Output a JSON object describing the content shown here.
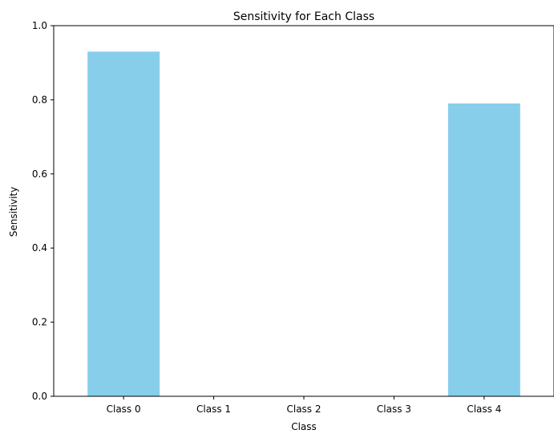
{
  "chart_data": {
    "type": "bar",
    "title": "Sensitivity for Each Class",
    "xlabel": "Class",
    "ylabel": "Sensitivity",
    "categories": [
      "Class 0",
      "Class 1",
      "Class 2",
      "Class 3",
      "Class 4"
    ],
    "values": [
      0.93,
      0.0,
      0.0,
      0.0,
      0.79
    ],
    "ylim": [
      0,
      1.0
    ],
    "yticks": [
      "0.0",
      "0.2",
      "0.4",
      "0.6",
      "0.8",
      "1.0"
    ],
    "grid": false,
    "bar_color": "#87ceeb"
  }
}
